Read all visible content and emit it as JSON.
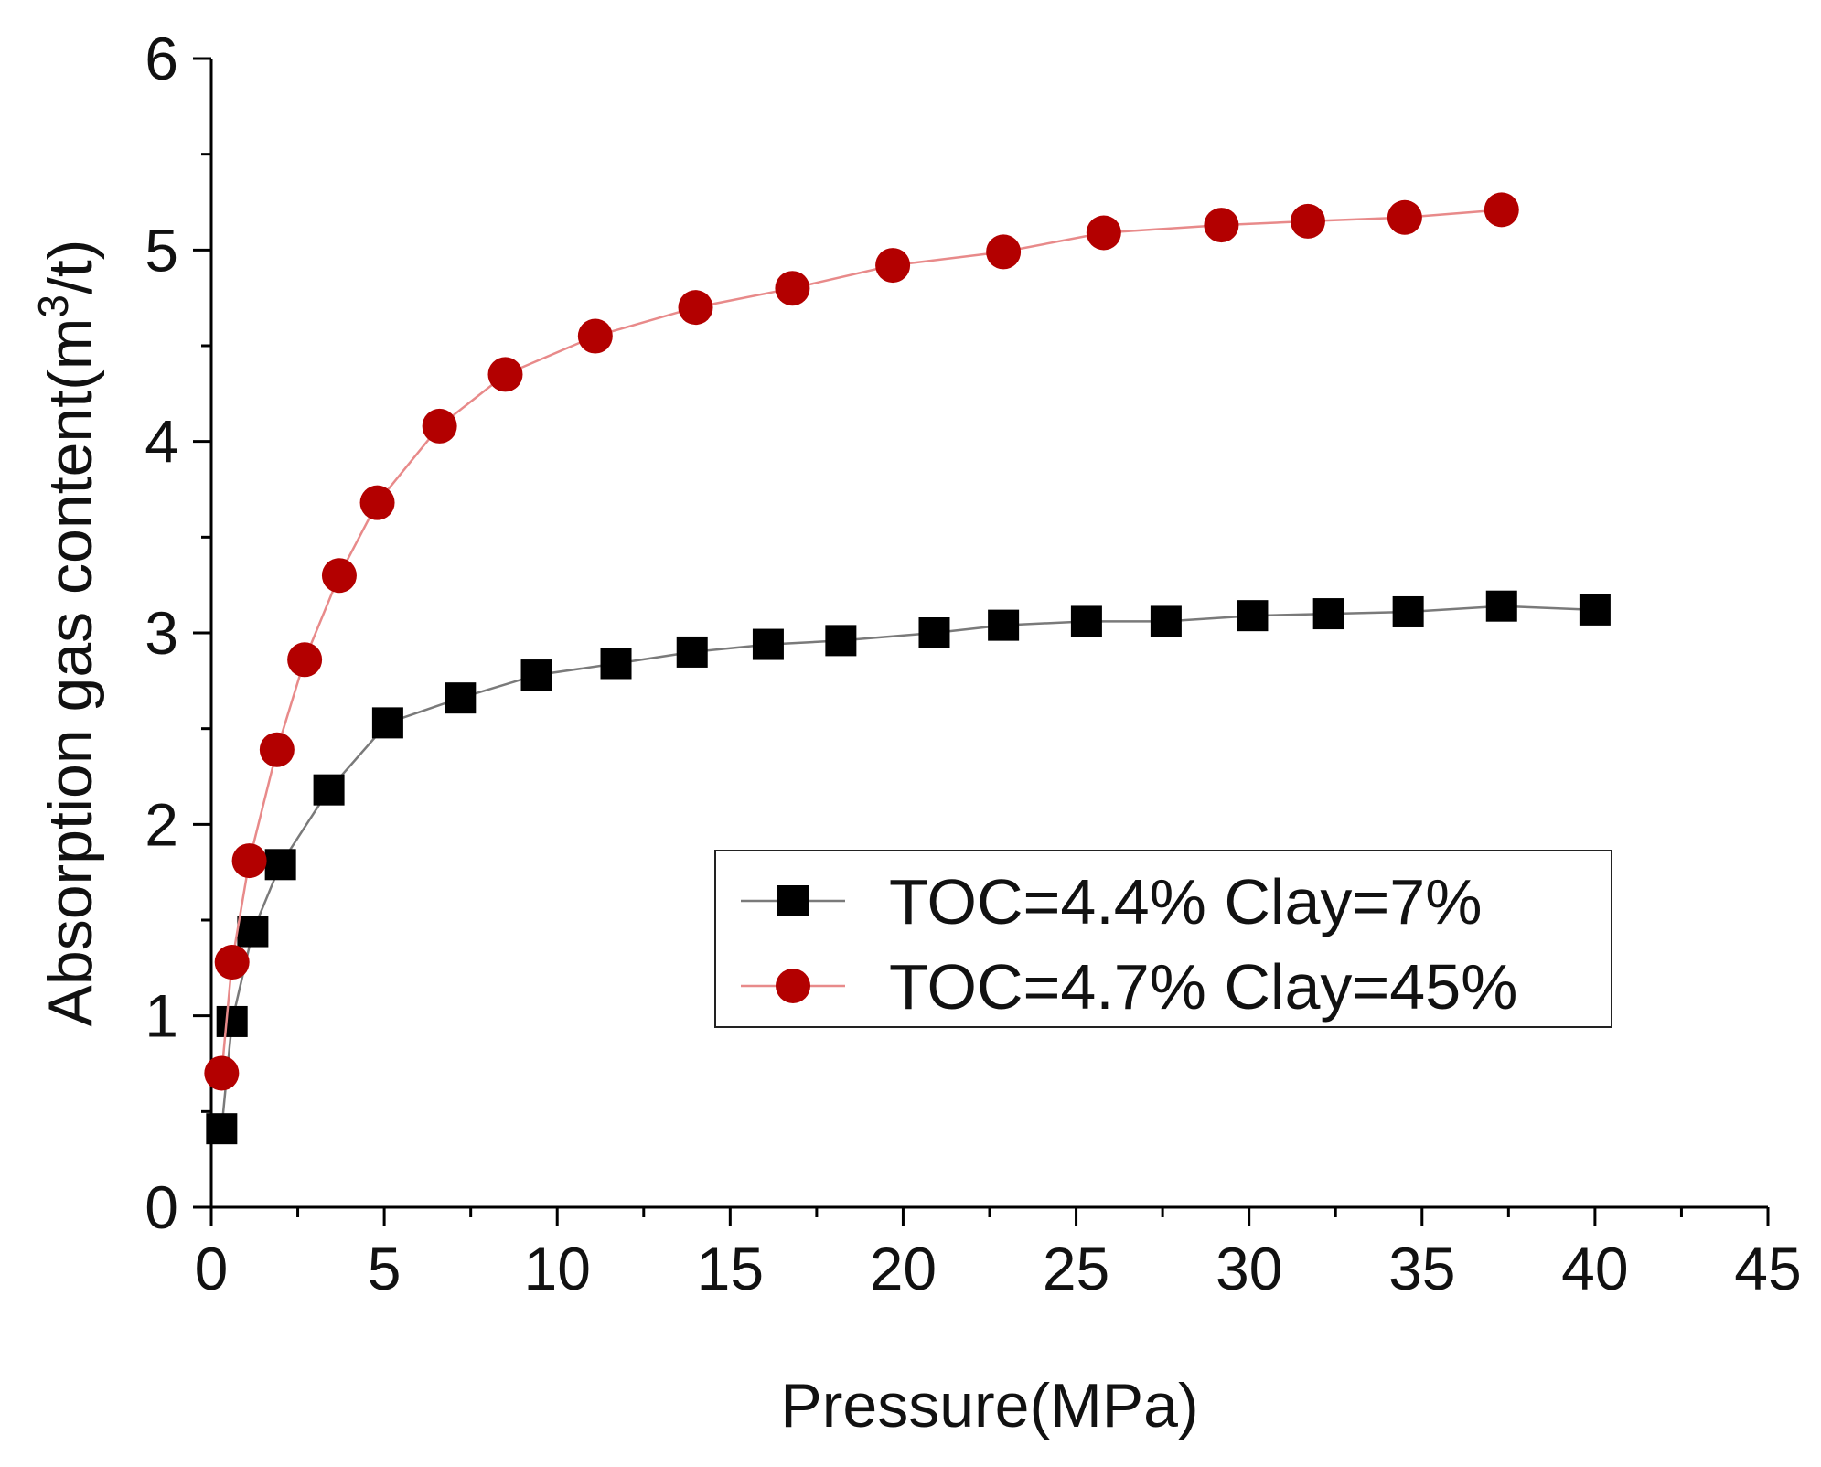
{
  "chart_data": {
    "type": "line",
    "title": "",
    "xlabel": "Pressure(MPa)",
    "ylabel": {
      "prefix": "Absorption gas content(m",
      "superscript": "3",
      "suffix": "/t)"
    },
    "xlim": [
      0,
      45
    ],
    "ylim": [
      0,
      6
    ],
    "xticks": [
      0,
      5,
      10,
      15,
      20,
      25,
      30,
      35,
      40,
      45
    ],
    "yticks": [
      0,
      1,
      2,
      3,
      4,
      5,
      6
    ],
    "xtick_labels": [
      "0",
      "5",
      "10",
      "15",
      "20",
      "25",
      "30",
      "35",
      "40",
      "45"
    ],
    "ytick_labels": [
      "0",
      "1",
      "2",
      "3",
      "4",
      "5",
      "6"
    ],
    "grid": false,
    "legend_position": "center-right",
    "series": [
      {
        "name": "TOC=4.4% Clay=7%",
        "marker": "square",
        "color": "#000000",
        "line_color": "#7a7a7a",
        "x": [
          0.3,
          0.6,
          1.2,
          2.0,
          3.4,
          5.1,
          7.2,
          9.4,
          11.7,
          13.9,
          16.1,
          18.2,
          20.9,
          22.9,
          25.3,
          27.6,
          30.1,
          32.3,
          34.6,
          37.3,
          40.0
        ],
        "y": [
          0.41,
          0.97,
          1.44,
          1.79,
          2.18,
          2.53,
          2.66,
          2.78,
          2.84,
          2.9,
          2.94,
          2.96,
          3.0,
          3.04,
          3.06,
          3.06,
          3.09,
          3.1,
          3.11,
          3.14,
          3.12
        ]
      },
      {
        "name": "TOC=4.7% Clay=45%",
        "marker": "circle",
        "color": "#b30000",
        "line_color": "#e88a8a",
        "x": [
          0.3,
          0.6,
          1.1,
          1.9,
          2.7,
          3.7,
          4.8,
          6.6,
          8.5,
          11.1,
          14.0,
          16.8,
          19.7,
          22.9,
          25.8,
          29.2,
          31.7,
          34.5,
          37.3
        ],
        "y": [
          0.7,
          1.28,
          1.81,
          2.39,
          2.86,
          3.3,
          3.68,
          4.08,
          4.35,
          4.55,
          4.7,
          4.8,
          4.92,
          4.99,
          5.09,
          5.13,
          5.15,
          5.17,
          5.21
        ]
      }
    ]
  }
}
